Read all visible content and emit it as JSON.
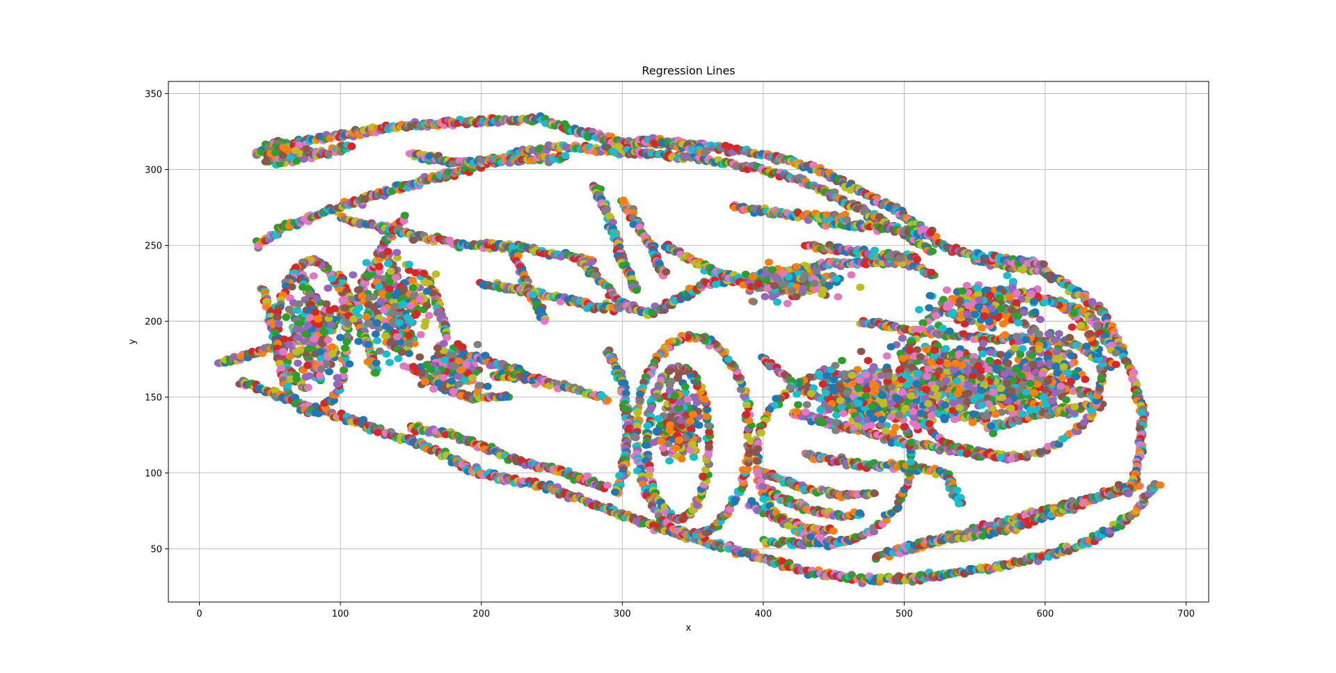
{
  "chart_data": {
    "type": "scatter",
    "title": "Regression Lines",
    "xlabel": "x",
    "ylabel": "y",
    "xlim": [
      -22,
      716
    ],
    "ylim": [
      15,
      358
    ],
    "xticks": [
      0,
      100,
      200,
      300,
      400,
      500,
      600,
      700
    ],
    "yticks": [
      50,
      100,
      150,
      200,
      250,
      300,
      350
    ],
    "grid": true,
    "palette": [
      "#1f77b4",
      "#ff7f0e",
      "#2ca02c",
      "#d62728",
      "#9467bd",
      "#8c564b",
      "#e377c2",
      "#7f7f7f",
      "#bcbd22",
      "#17becf"
    ],
    "strokes": [
      [
        [
          14,
          172
        ],
        [
          40,
          180
        ],
        [
          80,
          190
        ],
        [
          110,
          210
        ],
        [
          130,
          250
        ],
        [
          145,
          270
        ]
      ],
      [
        [
          30,
          160
        ],
        [
          60,
          150
        ],
        [
          100,
          137
        ],
        [
          160,
          118
        ],
        [
          200,
          100
        ],
        [
          250,
          90
        ],
        [
          300,
          72
        ],
        [
          350,
          57
        ],
        [
          400,
          44
        ],
        [
          430,
          35
        ],
        [
          470,
          30
        ],
        [
          500,
          30
        ],
        [
          560,
          37
        ],
        [
          620,
          50
        ],
        [
          660,
          70
        ],
        [
          680,
          95
        ]
      ],
      [
        [
          400,
          55
        ],
        [
          450,
          53
        ],
        [
          470,
          58
        ]
      ],
      [
        [
          500,
          50
        ],
        [
          540,
          60
        ],
        [
          600,
          75
        ],
        [
          640,
          85
        ],
        [
          668,
          93
        ]
      ],
      [
        [
          480,
          45
        ],
        [
          520,
          55
        ],
        [
          570,
          62
        ],
        [
          620,
          78
        ],
        [
          660,
          92
        ]
      ],
      [
        [
          550,
          240
        ],
        [
          600,
          233
        ],
        [
          640,
          208
        ],
        [
          660,
          170
        ],
        [
          670,
          138
        ],
        [
          665,
          100
        ],
        [
          658,
          85
        ]
      ],
      [
        [
          40,
          310
        ],
        [
          80,
          320
        ],
        [
          140,
          328
        ],
        [
          200,
          332
        ],
        [
          240,
          333
        ],
        [
          270,
          325
        ],
        [
          300,
          318
        ],
        [
          350,
          317
        ],
        [
          400,
          310
        ],
        [
          440,
          300
        ],
        [
          470,
          285
        ],
        [
          500,
          270
        ],
        [
          530,
          248
        ],
        [
          560,
          242
        ],
        [
          600,
          238
        ]
      ],
      [
        [
          40,
          250
        ],
        [
          60,
          262
        ],
        [
          90,
          272
        ],
        [
          120,
          282
        ],
        [
          150,
          290
        ],
        [
          190,
          300
        ],
        [
          230,
          312
        ],
        [
          260,
          315
        ],
        [
          300,
          312
        ],
        [
          350,
          308
        ],
        [
          400,
          300
        ],
        [
          430,
          292
        ],
        [
          460,
          278
        ],
        [
          500,
          258
        ],
        [
          520,
          246
        ]
      ],
      [
        [
          100,
          268
        ],
        [
          130,
          262
        ],
        [
          160,
          255
        ],
        [
          190,
          250
        ],
        [
          220,
          250
        ],
        [
          250,
          245
        ],
        [
          280,
          240
        ]
      ],
      [
        [
          200,
          225
        ],
        [
          240,
          218
        ],
        [
          280,
          210
        ],
        [
          300,
          208
        ]
      ],
      [
        [
          270,
          240
        ],
        [
          300,
          212
        ],
        [
          320,
          205
        ],
        [
          360,
          225
        ],
        [
          400,
          230
        ],
        [
          450,
          238
        ],
        [
          500,
          240
        ],
        [
          520,
          230
        ]
      ],
      [
        [
          310,
          320
        ],
        [
          340,
          316
        ],
        [
          360,
          312
        ]
      ],
      [
        [
          330,
          250
        ],
        [
          360,
          235
        ],
        [
          390,
          225
        ],
        [
          420,
          222
        ]
      ],
      [
        [
          300,
          280
        ],
        [
          320,
          250
        ],
        [
          330,
          230
        ]
      ],
      [
        [
          280,
          290
        ],
        [
          290,
          270
        ],
        [
          300,
          240
        ],
        [
          310,
          220
        ]
      ],
      [
        [
          45,
          222
        ],
        [
          50,
          205
        ],
        [
          55,
          185
        ],
        [
          65,
          165
        ],
        [
          75,
          155
        ]
      ],
      [
        [
          70,
          235
        ],
        [
          80,
          215
        ],
        [
          85,
          190
        ],
        [
          88,
          170
        ]
      ],
      [
        [
          100,
          230
        ],
        [
          110,
          205
        ],
        [
          120,
          185
        ],
        [
          125,
          165
        ]
      ],
      [
        [
          130,
          225
        ],
        [
          140,
          205
        ],
        [
          148,
          185
        ]
      ],
      [
        [
          160,
          230
        ],
        [
          170,
          210
        ],
        [
          175,
          190
        ]
      ],
      [
        [
          150,
          170
        ],
        [
          170,
          158
        ],
        [
          190,
          150
        ],
        [
          220,
          150
        ]
      ],
      [
        [
          180,
          180
        ],
        [
          200,
          175
        ],
        [
          220,
          170
        ],
        [
          240,
          160
        ]
      ],
      [
        [
          220,
          250
        ],
        [
          235,
          220
        ],
        [
          245,
          200
        ]
      ],
      [
        [
          210,
          165
        ],
        [
          250,
          160
        ],
        [
          290,
          148
        ]
      ],
      [
        [
          290,
          180
        ],
        [
          300,
          160
        ],
        [
          305,
          130
        ],
        [
          300,
          100
        ],
        [
          295,
          85
        ]
      ],
      [
        [
          150,
          130
        ],
        [
          180,
          125
        ],
        [
          220,
          110
        ],
        [
          260,
          100
        ],
        [
          290,
          90
        ]
      ],
      [
        [
          400,
          175
        ],
        [
          420,
          160
        ],
        [
          440,
          150
        ],
        [
          480,
          145
        ],
        [
          520,
          140
        ],
        [
          560,
          135
        ]
      ],
      [
        [
          420,
          140
        ],
        [
          460,
          130
        ],
        [
          500,
          120
        ],
        [
          540,
          115
        ],
        [
          580,
          110
        ]
      ],
      [
        [
          520,
          180
        ],
        [
          560,
          170
        ],
        [
          600,
          160
        ],
        [
          640,
          150
        ]
      ],
      [
        [
          580,
          190
        ],
        [
          620,
          185
        ],
        [
          650,
          170
        ]
      ],
      [
        [
          470,
          200
        ],
        [
          500,
          195
        ],
        [
          540,
          190
        ],
        [
          580,
          188
        ]
      ],
      [
        [
          430,
          250
        ],
        [
          470,
          245
        ],
        [
          510,
          242
        ]
      ],
      [
        [
          490,
          160
        ],
        [
          530,
          155
        ],
        [
          570,
          148
        ],
        [
          620,
          140
        ]
      ],
      [
        [
          560,
          130
        ],
        [
          600,
          140
        ],
        [
          640,
          145
        ]
      ],
      [
        [
          600,
          215
        ],
        [
          630,
          205
        ],
        [
          650,
          180
        ]
      ],
      [
        [
          440,
          265
        ],
        [
          480,
          262
        ],
        [
          520,
          258
        ]
      ],
      [
        [
          380,
          275
        ],
        [
          420,
          270
        ],
        [
          460,
          268
        ]
      ],
      [
        [
          150,
          310
        ],
        [
          180,
          305
        ],
        [
          220,
          306
        ],
        [
          260,
          308
        ]
      ],
      [
        [
          50,
          318
        ],
        [
          80,
          310
        ],
        [
          110,
          315
        ]
      ],
      [
        [
          400,
          100
        ],
        [
          430,
          90
        ],
        [
          460,
          85
        ],
        [
          480,
          87
        ]
      ],
      [
        [
          400,
          90
        ],
        [
          420,
          80
        ],
        [
          450,
          72
        ],
        [
          470,
          73
        ]
      ],
      [
        [
          390,
          80
        ],
        [
          410,
          70
        ],
        [
          430,
          63
        ],
        [
          450,
          62
        ]
      ],
      [
        [
          430,
          112
        ],
        [
          470,
          105
        ],
        [
          500,
          105
        ],
        [
          530,
          100
        ],
        [
          540,
          80
        ]
      ]
    ],
    "loops": [
      {
        "cx": 350,
        "cy": 125,
        "rx": 40,
        "ry": 65,
        "n": 240
      },
      {
        "cx": 340,
        "cy": 120,
        "rx": 22,
        "ry": 50,
        "n": 160
      },
      {
        "cx": 80,
        "cy": 190,
        "rx": 25,
        "ry": 50,
        "n": 160
      },
      {
        "cx": 450,
        "cy": 110,
        "rx": 55,
        "ry": 55,
        "n": 180
      },
      {
        "cx": 570,
        "cy": 165,
        "rx": 70,
        "ry": 55,
        "n": 200
      }
    ],
    "clusters": [
      {
        "cx": 340,
        "cy": 135,
        "sx": 15,
        "sy": 25,
        "n": 220
      },
      {
        "cx": 80,
        "cy": 190,
        "sx": 18,
        "sy": 30,
        "n": 220
      },
      {
        "cx": 540,
        "cy": 160,
        "sx": 55,
        "sy": 25,
        "n": 600
      },
      {
        "cx": 470,
        "cy": 150,
        "sx": 35,
        "sy": 20,
        "n": 300
      },
      {
        "cx": 600,
        "cy": 170,
        "sx": 25,
        "sy": 25,
        "n": 200
      },
      {
        "cx": 60,
        "cy": 310,
        "sx": 12,
        "sy": 6,
        "n": 160
      },
      {
        "cx": 140,
        "cy": 210,
        "sx": 25,
        "sy": 35,
        "n": 250
      },
      {
        "cx": 180,
        "cy": 170,
        "sx": 22,
        "sy": 15,
        "n": 150
      },
      {
        "cx": 420,
        "cy": 225,
        "sx": 35,
        "sy": 10,
        "n": 200
      },
      {
        "cx": 560,
        "cy": 210,
        "sx": 40,
        "sy": 15,
        "n": 200
      }
    ]
  }
}
